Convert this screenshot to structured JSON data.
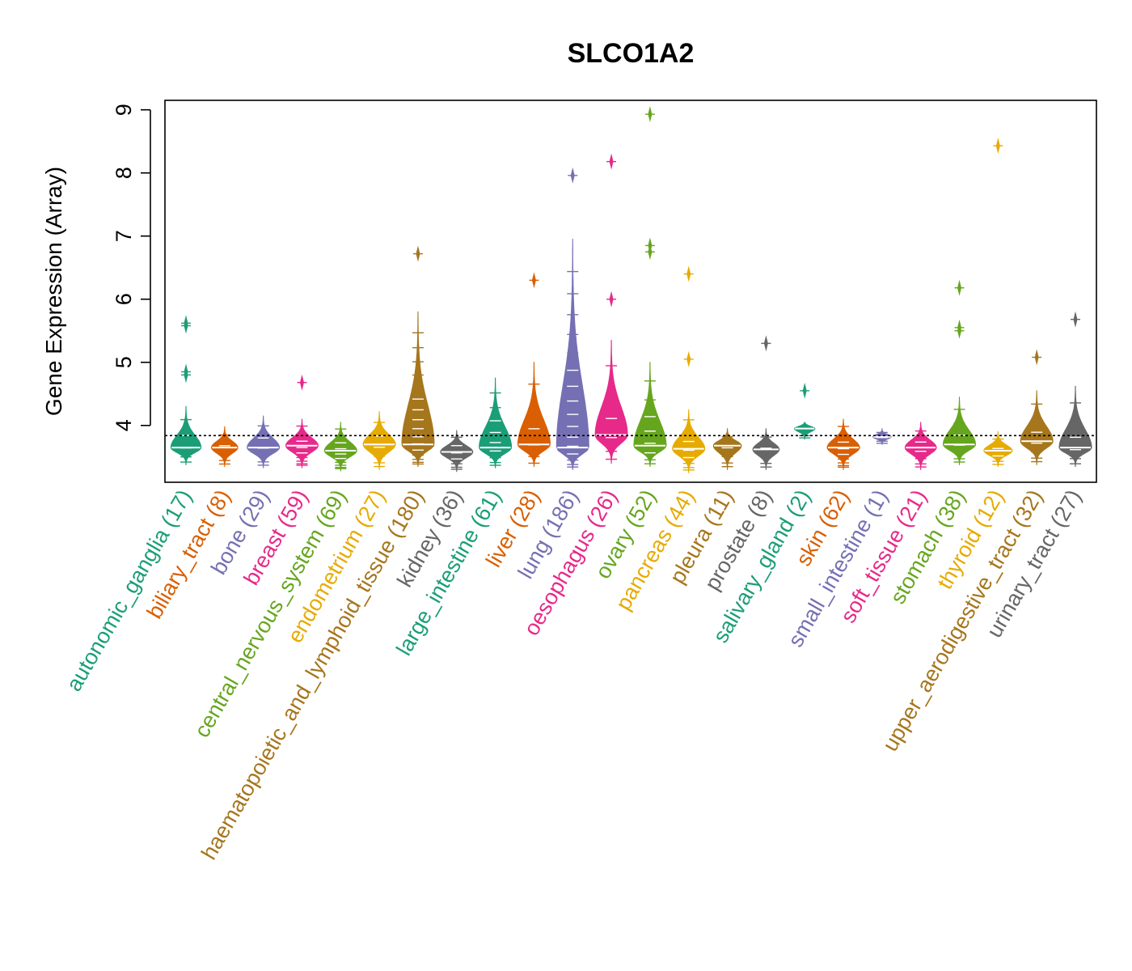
{
  "chart_data": {
    "type": "beanplot",
    "title": "SLCO1A2",
    "xlabel": "",
    "ylabel": "Gene Expression (Array)",
    "ylim": [
      3.1,
      9.15
    ],
    "yticks": [
      4,
      5,
      6,
      7,
      8,
      9
    ],
    "reference_line": 3.84,
    "grid": false,
    "categories": [
      {
        "name": "autonomic_ganglia",
        "n": 17,
        "label": "autonomic_ganglia (17)",
        "color": "#1b9e77",
        "center": 3.65,
        "lo": 3.38,
        "hi": 4.3,
        "outliers": [
          4.8,
          4.85,
          5.58,
          5.62
        ]
      },
      {
        "name": "biliary_tract",
        "n": 8,
        "label": "biliary_tract (8)",
        "color": "#d95f02",
        "center": 3.65,
        "lo": 3.35,
        "hi": 3.98,
        "outliers": []
      },
      {
        "name": "bone",
        "n": 29,
        "label": "bone (29)",
        "color": "#7570b3",
        "center": 3.65,
        "lo": 3.33,
        "hi": 4.15,
        "outliers": []
      },
      {
        "name": "breast",
        "n": 59,
        "label": "breast (59)",
        "color": "#e7298a",
        "center": 3.68,
        "lo": 3.33,
        "hi": 4.1,
        "outliers": [
          4.68
        ]
      },
      {
        "name": "central_nervous_system",
        "n": 69,
        "label": "central_nervous_system (69)",
        "color": "#66a61e",
        "center": 3.6,
        "lo": 3.28,
        "hi": 4.05,
        "outliers": []
      },
      {
        "name": "endometrium",
        "n": 27,
        "label": "endometrium (27)",
        "color": "#e6ab02",
        "center": 3.7,
        "lo": 3.3,
        "hi": 4.22,
        "outliers": []
      },
      {
        "name": "haematopoietic_and_lymphoid_tissue",
        "n": 180,
        "label": "haematopoietic_and_lymphoid_tissue (180)",
        "color": "#a6761d",
        "center": 3.7,
        "lo": 3.35,
        "hi": 5.8,
        "outliers": [
          6.72
        ]
      },
      {
        "name": "kidney",
        "n": 36,
        "label": "kidney (36)",
        "color": "#666666",
        "center": 3.58,
        "lo": 3.27,
        "hi": 3.92,
        "outliers": []
      },
      {
        "name": "large_intestine",
        "n": 61,
        "label": "large_intestine (61)",
        "color": "#1b9e77",
        "center": 3.65,
        "lo": 3.33,
        "hi": 4.75,
        "outliers": []
      },
      {
        "name": "liver",
        "n": 28,
        "label": "liver (28)",
        "color": "#d95f02",
        "center": 3.7,
        "lo": 3.35,
        "hi": 5.0,
        "outliers": [
          6.3
        ]
      },
      {
        "name": "lung",
        "n": 186,
        "label": "lung (186)",
        "color": "#7570b3",
        "center": 3.65,
        "lo": 3.3,
        "hi": 6.95,
        "outliers": [
          7.96
        ]
      },
      {
        "name": "oesophagus",
        "n": 26,
        "label": "oesophagus (26)",
        "color": "#e7298a",
        "center": 3.85,
        "lo": 3.4,
        "hi": 5.35,
        "outliers": [
          6.0,
          8.18
        ]
      },
      {
        "name": "ovary",
        "n": 52,
        "label": "ovary (52)",
        "color": "#66a61e",
        "center": 3.68,
        "lo": 3.35,
        "hi": 5.0,
        "outliers": [
          6.75,
          6.85,
          8.93
        ]
      },
      {
        "name": "pancreas",
        "n": 44,
        "label": "pancreas (44)",
        "color": "#e6ab02",
        "center": 3.63,
        "lo": 3.25,
        "hi": 4.25,
        "outliers": [
          5.05,
          6.4
        ]
      },
      {
        "name": "pleura",
        "n": 11,
        "label": "pleura (11)",
        "color": "#a6761d",
        "center": 3.68,
        "lo": 3.3,
        "hi": 3.95,
        "outliers": []
      },
      {
        "name": "prostate",
        "n": 8,
        "label": "prostate (8)",
        "color": "#666666",
        "center": 3.62,
        "lo": 3.3,
        "hi": 3.95,
        "outliers": [
          5.3
        ]
      },
      {
        "name": "salivary_gland",
        "n": 2,
        "label": "salivary_gland (2)",
        "color": "#1b9e77",
        "center": 3.95,
        "lo": 3.78,
        "hi": 4.05,
        "outliers": [
          4.55
        ]
      },
      {
        "name": "skin",
        "n": 62,
        "label": "skin (62)",
        "color": "#d95f02",
        "center": 3.65,
        "lo": 3.3,
        "hi": 4.1,
        "outliers": []
      },
      {
        "name": "small_intestine",
        "n": 1,
        "label": "small_intestine (1)",
        "color": "#7570b3",
        "center": 3.82,
        "lo": 3.7,
        "hi": 3.95,
        "outliers": []
      },
      {
        "name": "soft_tissue",
        "n": 21,
        "label": "soft_tissue (21)",
        "color": "#e7298a",
        "center": 3.65,
        "lo": 3.3,
        "hi": 4.05,
        "outliers": []
      },
      {
        "name": "stomach",
        "n": 38,
        "label": "stomach (38)",
        "color": "#66a61e",
        "center": 3.7,
        "lo": 3.38,
        "hi": 4.45,
        "outliers": [
          5.5,
          5.55,
          6.18
        ]
      },
      {
        "name": "thyroid",
        "n": 12,
        "label": "thyroid (12)",
        "color": "#e6ab02",
        "center": 3.6,
        "lo": 3.35,
        "hi": 3.9,
        "outliers": [
          8.43
        ]
      },
      {
        "name": "upper_aerodigestive_tract",
        "n": 32,
        "label": "upper_aerodigestive_tract (32)",
        "color": "#a6761d",
        "center": 3.75,
        "lo": 3.38,
        "hi": 4.55,
        "outliers": [
          5.08
        ]
      },
      {
        "name": "urinary_tract",
        "n": 27,
        "label": "urinary_tract (27)",
        "color": "#666666",
        "center": 3.65,
        "lo": 3.35,
        "hi": 4.62,
        "outliers": [
          5.68
        ]
      }
    ]
  }
}
